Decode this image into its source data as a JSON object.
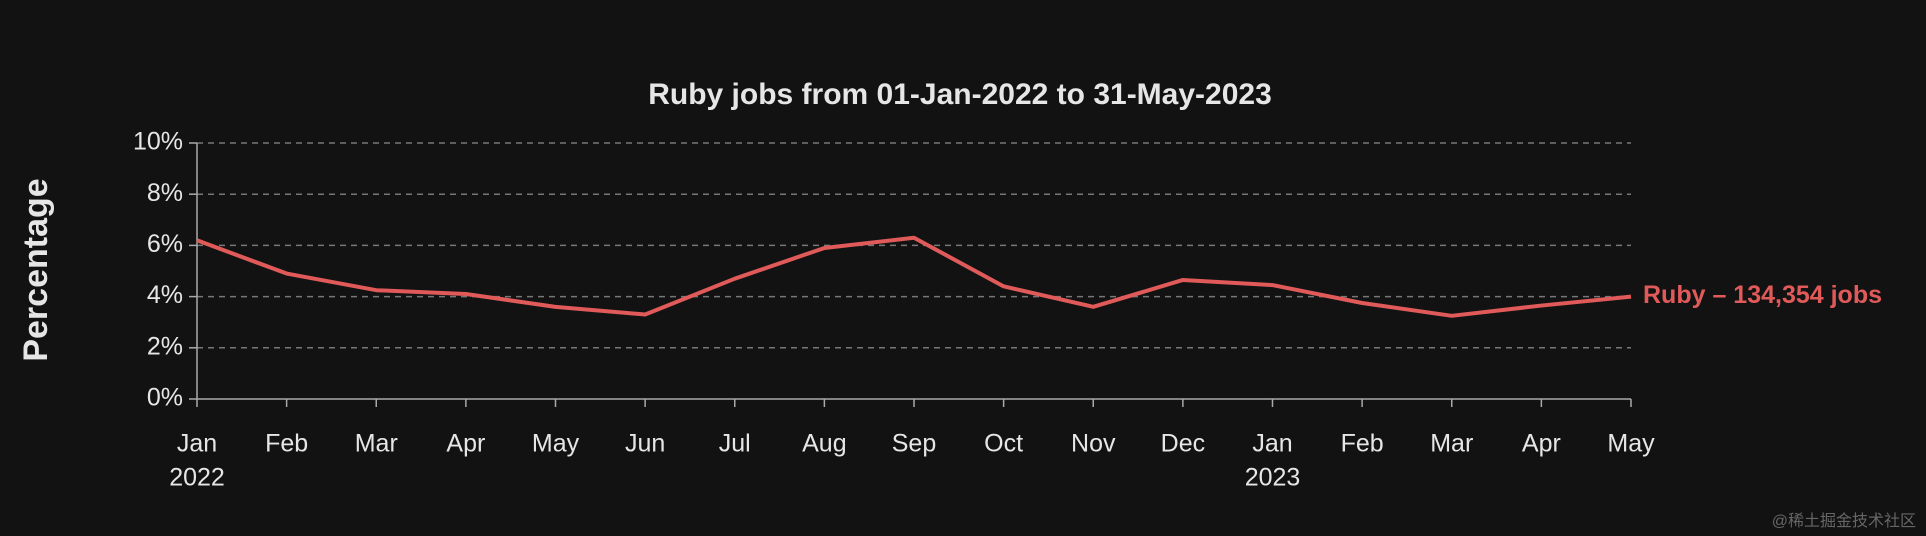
{
  "chart_data": {
    "type": "line",
    "title": "Ruby jobs from 01-Jan-2022 to 31-May-2023",
    "y_label": "Percentage",
    "categories": [
      "Jan",
      "Feb",
      "Mar",
      "Apr",
      "May",
      "Jun",
      "Jul",
      "Aug",
      "Sep",
      "Oct",
      "Nov",
      "Dec",
      "Jan",
      "Feb",
      "Mar",
      "Apr",
      "May"
    ],
    "category_years": [
      "2022",
      null,
      null,
      null,
      null,
      null,
      null,
      null,
      null,
      null,
      null,
      null,
      "2023",
      null,
      null,
      null,
      null
    ],
    "series": [
      {
        "name": "Ruby – 134,354 jobs",
        "color": "#e05a5a",
        "values": [
          6.2,
          4.9,
          4.25,
          4.1,
          3.6,
          3.3,
          4.7,
          5.9,
          6.3,
          4.4,
          3.6,
          4.65,
          4.45,
          3.75,
          3.25,
          3.65,
          4.0
        ]
      }
    ],
    "ylim": [
      0,
      10
    ],
    "yticks": [
      {
        "value": 0,
        "label": "0%"
      },
      {
        "value": 2,
        "label": "2%"
      },
      {
        "value": 4,
        "label": "4%"
      },
      {
        "value": 6,
        "label": "6%"
      },
      {
        "value": 8,
        "label": "8%"
      },
      {
        "value": 10,
        "label": "10%"
      }
    ],
    "grid": true,
    "watermark": "@稀土掘金技术社区"
  }
}
